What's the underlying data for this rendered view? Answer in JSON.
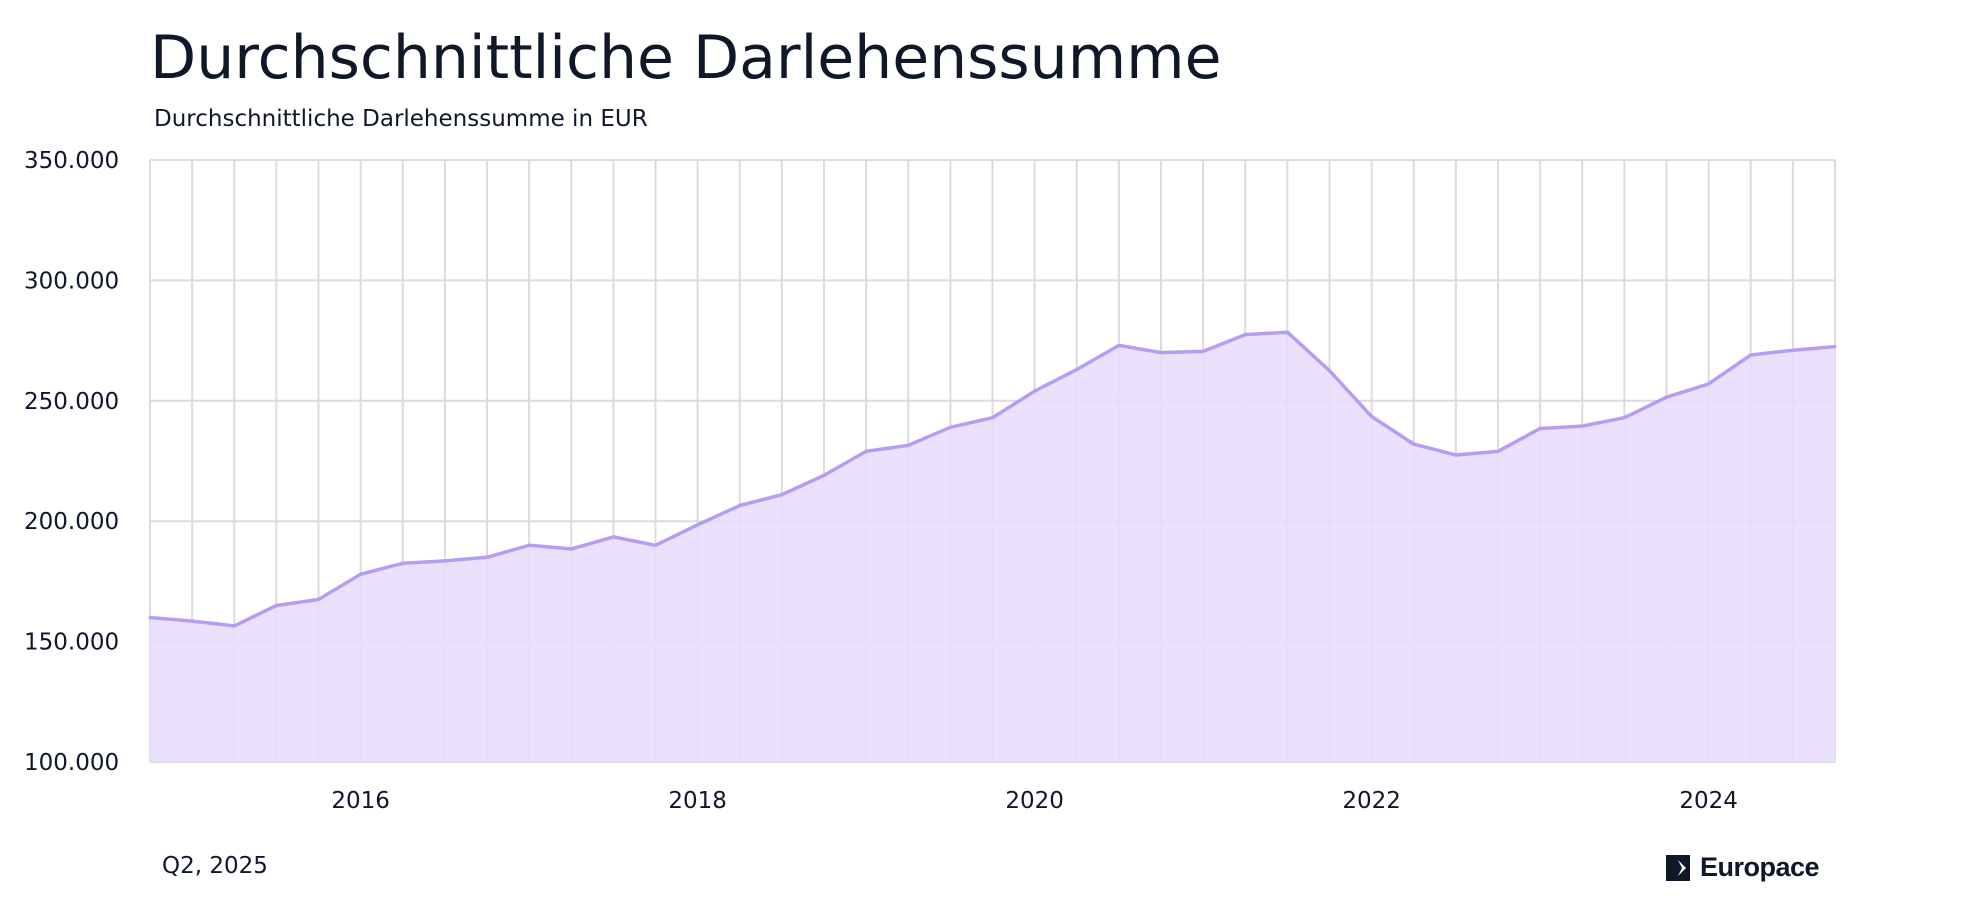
{
  "header": {
    "title": "Durchschnittliche Darlehenssumme",
    "subtitle": "Durchschnittliche Darlehenssumme in EUR"
  },
  "footer": {
    "period": "Q2, 2025",
    "brand": "Europace"
  },
  "colors": {
    "line": "#b69cf2",
    "area": "#e6ddfd",
    "grid": "#dcdce0",
    "text": "#0f1729"
  },
  "chart_data": {
    "type": "area",
    "grid": true,
    "x_tick_labels": [
      "2016",
      "2018",
      "2020",
      "2022",
      "2024"
    ],
    "y_tick_labels": [
      "100.000",
      "150.000",
      "200.000",
      "250.000",
      "300.000",
      "350.000"
    ],
    "ylim": [
      100000,
      350000
    ],
    "xlim": [
      "2014-Q4",
      "2024-Q4"
    ],
    "x": [
      "2014-Q4",
      "2015-Q1",
      "2015-Q2",
      "2015-Q3",
      "2015-Q4",
      "2016-Q1",
      "2016-Q2",
      "2016-Q3",
      "2016-Q4",
      "2017-Q1",
      "2017-Q2",
      "2017-Q3",
      "2017-Q4",
      "2018-Q1",
      "2018-Q2",
      "2018-Q3",
      "2018-Q4",
      "2019-Q1",
      "2019-Q2",
      "2019-Q3",
      "2019-Q4",
      "2020-Q1",
      "2020-Q2",
      "2020-Q3",
      "2020-Q4",
      "2021-Q1",
      "2021-Q2",
      "2021-Q3",
      "2021-Q4",
      "2022-Q1",
      "2022-Q2",
      "2022-Q3",
      "2022-Q4",
      "2023-Q1",
      "2023-Q2",
      "2023-Q3",
      "2023-Q4",
      "2024-Q1",
      "2024-Q2",
      "2024-Q3",
      "2024-Q4"
    ],
    "values": [
      160000,
      158500,
      156500,
      165000,
      167500,
      178000,
      182500,
      183500,
      185000,
      190000,
      188500,
      193500,
      190000,
      198500,
      206500,
      211000,
      219000,
      229000,
      231500,
      239000,
      243000,
      254000,
      263000,
      273000,
      270000,
      270500,
      277500,
      278500,
      262500,
      243500,
      232000,
      227500,
      229000,
      238500,
      239500,
      243000,
      251500,
      257000,
      269000,
      271000,
      272500
    ]
  }
}
